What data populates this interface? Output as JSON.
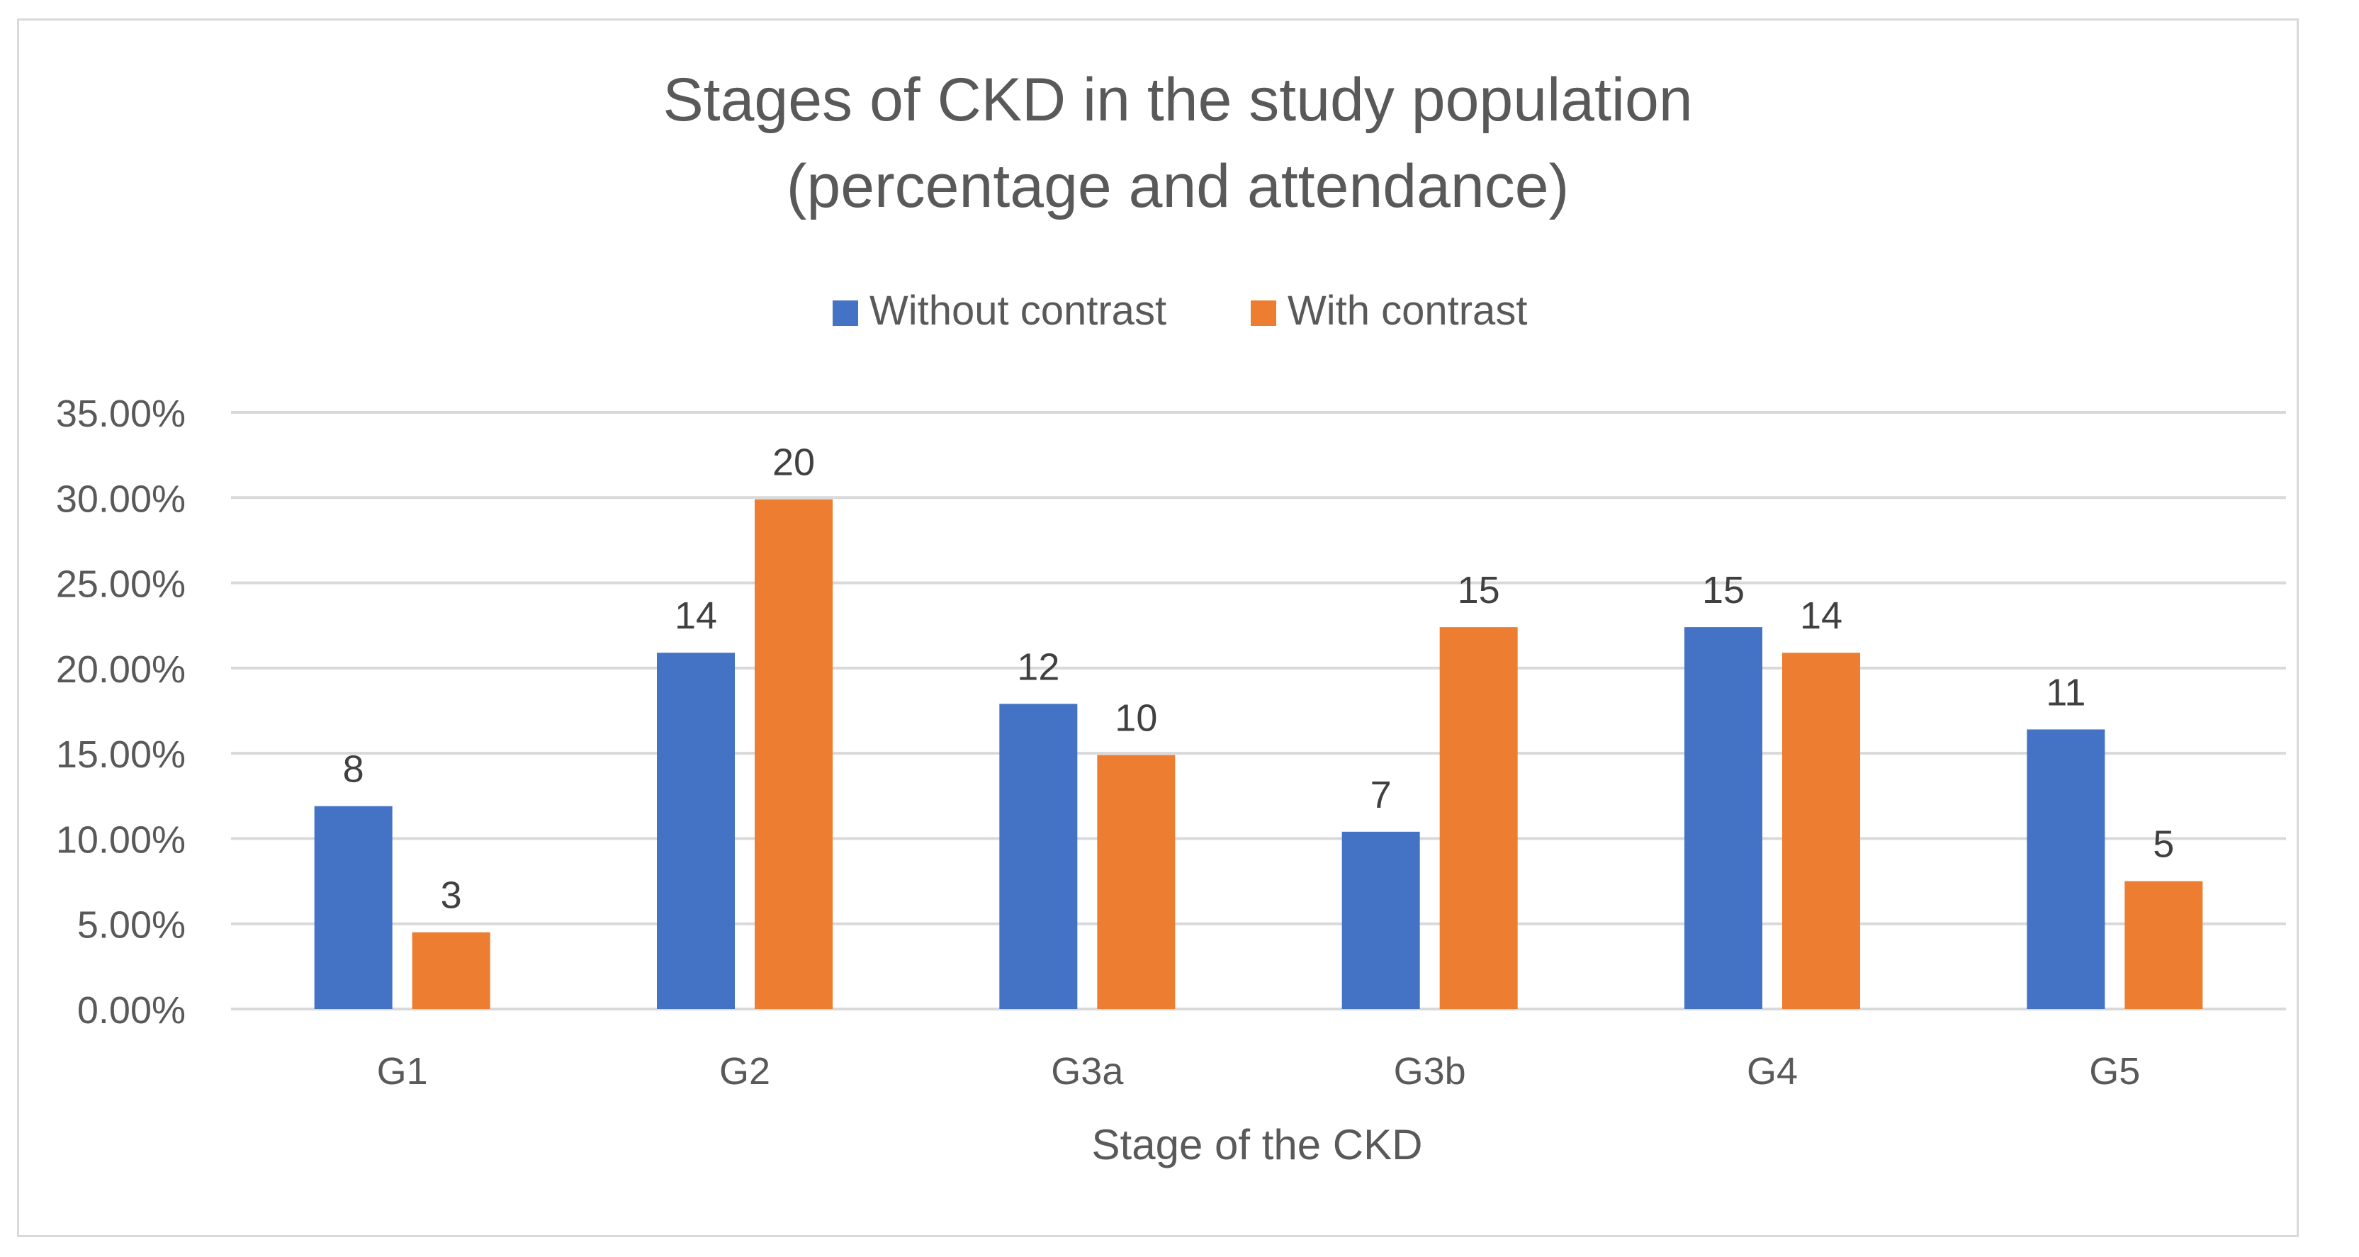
{
  "chart_data": {
    "type": "bar",
    "title": [
      "Stages of CKD in the study population",
      "(percentage and attendance)"
    ],
    "xlabel": "Stage of the CKD",
    "ylabel": "",
    "categories": [
      "G1",
      "G2",
      "G3a",
      "G3b",
      "G4",
      "G5"
    ],
    "ylim": [
      0,
      0.35
    ],
    "yticks": [
      0,
      0.05,
      0.1,
      0.15,
      0.2,
      0.25,
      0.3,
      0.35
    ],
    "ytick_labels": [
      "0.00%",
      "5.00%",
      "10.00%",
      "15.00%",
      "20.00%",
      "25.00%",
      "30.00%",
      "35.00%"
    ],
    "grid": true,
    "legend_position": "top-center",
    "series": [
      {
        "name": "Without contrast",
        "color": "#4472C4",
        "values": [
          0.119,
          0.209,
          0.179,
          0.104,
          0.224,
          0.164
        ],
        "labels": [
          "8",
          "14",
          "12",
          "7",
          "15",
          "11"
        ]
      },
      {
        "name": "With contrast",
        "color": "#ED7D31",
        "values": [
          0.045,
          0.299,
          0.149,
          0.224,
          0.209,
          0.075
        ],
        "labels": [
          "3",
          "20",
          "10",
          "15",
          "14",
          "5"
        ]
      }
    ]
  }
}
